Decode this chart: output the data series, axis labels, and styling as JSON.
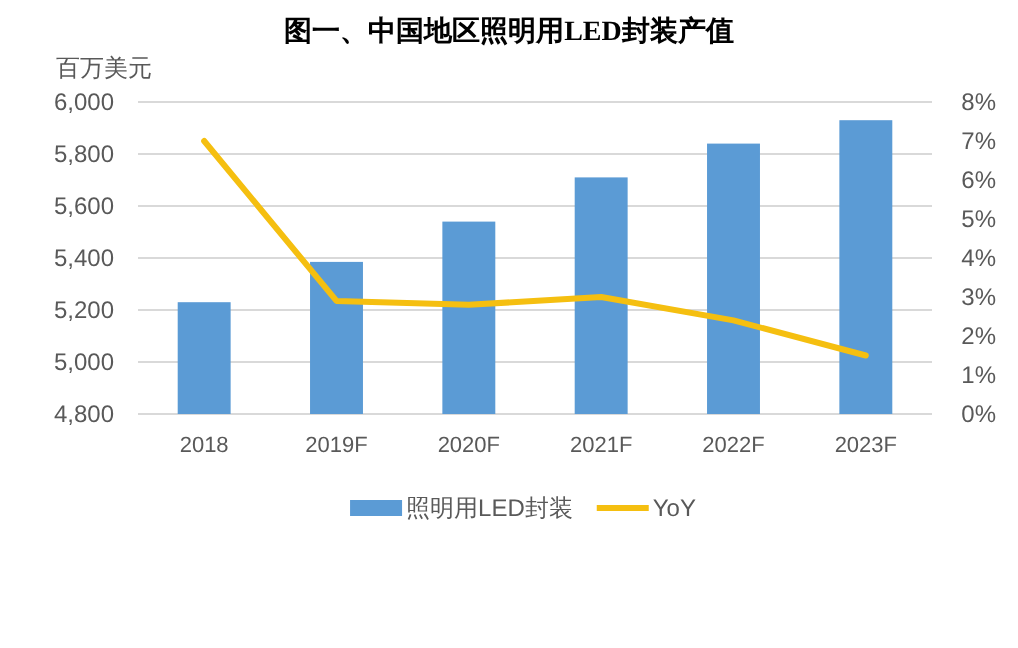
{
  "chart_data": {
    "type": "bar",
    "title": "图一、中国地区照明用LED封装产值",
    "ylabel": "百万美元",
    "categories": [
      "2018",
      "2019F",
      "2020F",
      "2021F",
      "2022F",
      "2023F"
    ],
    "series": [
      {
        "name": "照明用LED封装",
        "color": "#5b9bd5",
        "values": [
          5230,
          5385,
          5540,
          5710,
          5840,
          5930
        ]
      },
      {
        "name": "YoY",
        "type": "line",
        "axis": "y2",
        "color": "#f5bf10",
        "values": [
          7.0,
          2.9,
          2.8,
          3.0,
          2.4,
          1.5
        ]
      }
    ],
    "ylim": [
      4800,
      6000
    ],
    "yticks": [
      {
        "value": 4800,
        "label": "4,800"
      },
      {
        "value": 5000,
        "label": "5,000"
      },
      {
        "value": 5200,
        "label": "5,200"
      },
      {
        "value": 5400,
        "label": "5,400"
      },
      {
        "value": 5600,
        "label": "5,600"
      },
      {
        "value": 5800,
        "label": "5,800"
      },
      {
        "value": 6000,
        "label": "6,000"
      }
    ],
    "y2lim": [
      0,
      8
    ],
    "y2ticks": [
      {
        "value": 0,
        "label": "0%"
      },
      {
        "value": 1,
        "label": "1%"
      },
      {
        "value": 2,
        "label": "2%"
      },
      {
        "value": 3,
        "label": "3%"
      },
      {
        "value": 4,
        "label": "4%"
      },
      {
        "value": 5,
        "label": "5%"
      },
      {
        "value": 6,
        "label": "6%"
      },
      {
        "value": 7,
        "label": "7%"
      },
      {
        "value": 8,
        "label": "8%"
      }
    ],
    "grid": "y",
    "legend": "bottom",
    "marker": "none"
  }
}
